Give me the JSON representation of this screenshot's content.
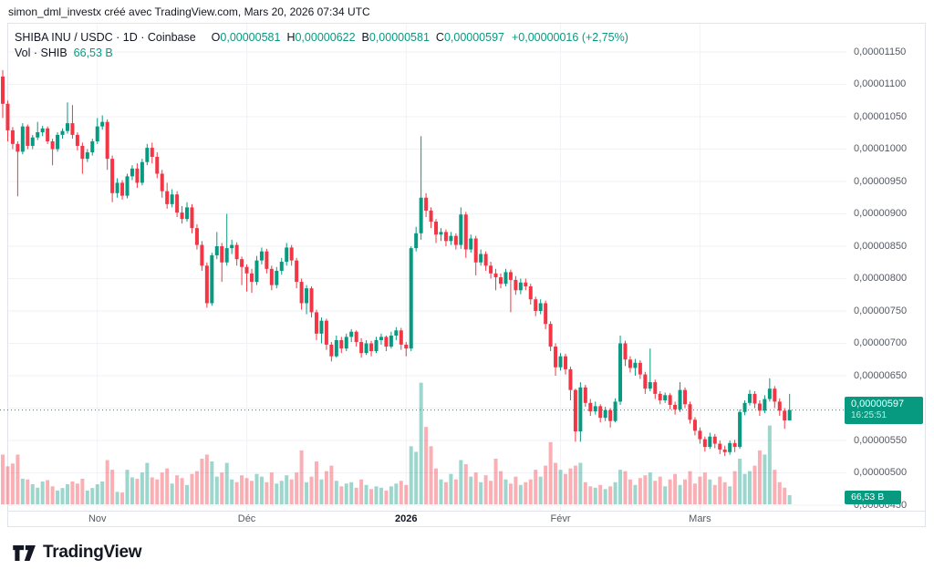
{
  "attribution": "simon_dml_investx créé avec TradingView.com, Mars 20, 2026 07:34 UTC",
  "legend": {
    "title": "SHIBA INU / USDC · 1D · Coinbase",
    "ohlc": [
      {
        "k": "O",
        "v": "0,00000581"
      },
      {
        "k": "H",
        "v": "0,00000622"
      },
      {
        "k": "B",
        "v": "0,00000581"
      },
      {
        "k": "C",
        "v": "0,00000597"
      }
    ],
    "change": "+0,00000016 (+2,75%)",
    "vol_label": "Vol · SHIB",
    "vol_value": "66,53 B"
  },
  "price_line": {
    "label": "0,00000597",
    "countdown": "16:25:51",
    "price": 597
  },
  "volume_badge": {
    "text": "66,53 B"
  },
  "logo": {
    "text": "TradingView",
    "mark_icon": "tradingview-mark"
  },
  "colors": {
    "up": "#089981",
    "down": "#f23645",
    "up_volume": "rgba(8,153,129,0.40)",
    "down_volume": "rgba(242,54,69,0.40)",
    "grid": "#f0f2f6",
    "frame": "#e0e3eb",
    "axis_text": "#555962",
    "text": "#131722",
    "badge": "#089981"
  },
  "chart_data": {
    "type": "candlestick",
    "title": "SHIBA INU / USDC · 1D · Coinbase",
    "symbol": "SHIBA INU / USDC",
    "interval": "1D",
    "exchange": "Coinbase",
    "unit": "prices in 1e-8 USDC (e.g. 597 = 0,00000597)",
    "ylim": [
      450,
      1191
    ],
    "grid_step": 50,
    "legend_position": "top-left",
    "last_candle": {
      "open": 581,
      "high": 622,
      "low": 581,
      "close": 597,
      "change": "+2,75%"
    },
    "current_price": 597,
    "volume_unit": "billions SHIB",
    "last_volume_billions": 66.53,
    "price_axis_labels": [
      {
        "text": "0,00001150",
        "price": 1150
      },
      {
        "text": "0,00001100",
        "price": 1100
      },
      {
        "text": "0,00001050",
        "price": 1050
      },
      {
        "text": "0,00001000",
        "price": 1000
      },
      {
        "text": "0,00000950",
        "price": 950
      },
      {
        "text": "0,00000900",
        "price": 900
      },
      {
        "text": "0,00000850",
        "price": 850
      },
      {
        "text": "0,00000800",
        "price": 800
      },
      {
        "text": "0,00000750",
        "price": 750
      },
      {
        "text": "0,00000700",
        "price": 700
      },
      {
        "text": "0,00000650",
        "price": 650
      },
      {
        "text": "0,00000550",
        "price": 550
      },
      {
        "text": "0,00000500",
        "price": 500
      },
      {
        "text": "0,00000450",
        "price": 450
      }
    ],
    "time_axis_labels": [
      {
        "label": "Nov",
        "index": 19,
        "bold": false
      },
      {
        "label": "Déc",
        "index": 49,
        "bold": false
      },
      {
        "label": "2026",
        "index": 81,
        "bold": true
      },
      {
        "label": "Févr",
        "index": 112,
        "bold": false
      },
      {
        "label": "Mars",
        "index": 140,
        "bold": false
      }
    ],
    "candles_ohlc": [
      [
        1112,
        1122,
        1048,
        1070
      ],
      [
        1070,
        1075,
        1012,
        1029
      ],
      [
        1029,
        1034,
        1000,
        1008
      ],
      [
        1008,
        1012,
        927,
        996
      ],
      [
        996,
        1040,
        992,
        1035
      ],
      [
        1035,
        1038,
        1000,
        1005
      ],
      [
        1005,
        1022,
        1000,
        1018
      ],
      [
        1018,
        1042,
        1014,
        1026
      ],
      [
        1026,
        1036,
        1020,
        1032
      ],
      [
        1032,
        1035,
        1008,
        1012
      ],
      [
        1012,
        1016,
        975,
        1000
      ],
      [
        1000,
        1026,
        996,
        1022
      ],
      [
        1022,
        1032,
        1016,
        1028
      ],
      [
        1028,
        1072,
        1024,
        1040
      ],
      [
        1040,
        1068,
        1016,
        1022
      ],
      [
        1022,
        1026,
        998,
        1005
      ],
      [
        1005,
        1010,
        962,
        985
      ],
      [
        985,
        1000,
        980,
        995
      ],
      [
        995,
        1016,
        990,
        1012
      ],
      [
        1012,
        1048,
        1008,
        1035
      ],
      [
        1035,
        1052,
        1030,
        1042
      ],
      [
        1042,
        1046,
        968,
        985
      ],
      [
        985,
        990,
        918,
        932
      ],
      [
        932,
        955,
        925,
        948
      ],
      [
        948,
        952,
        922,
        928
      ],
      [
        928,
        962,
        924,
        958
      ],
      [
        958,
        975,
        952,
        970
      ],
      [
        970,
        978,
        940,
        948
      ],
      [
        948,
        985,
        944,
        980
      ],
      [
        980,
        1008,
        975,
        1002
      ],
      [
        1002,
        1010,
        978,
        988
      ],
      [
        988,
        995,
        955,
        962
      ],
      [
        962,
        968,
        925,
        935
      ],
      [
        935,
        948,
        908,
        915
      ],
      [
        915,
        938,
        910,
        930
      ],
      [
        930,
        935,
        895,
        902
      ],
      [
        902,
        912,
        885,
        892
      ],
      [
        892,
        918,
        888,
        910
      ],
      [
        910,
        915,
        870,
        878
      ],
      [
        878,
        884,
        845,
        852
      ],
      [
        852,
        858,
        812,
        820
      ],
      [
        820,
        825,
        755,
        762
      ],
      [
        762,
        840,
        758,
        836
      ],
      [
        836,
        872,
        830,
        850
      ],
      [
        850,
        855,
        795,
        825
      ],
      [
        825,
        900,
        820,
        847
      ],
      [
        847,
        860,
        838,
        852
      ],
      [
        852,
        856,
        820,
        830
      ],
      [
        830,
        834,
        790,
        818
      ],
      [
        818,
        822,
        780,
        808
      ],
      [
        808,
        815,
        778,
        795
      ],
      [
        795,
        835,
        790,
        828
      ],
      [
        828,
        848,
        822,
        842
      ],
      [
        842,
        846,
        808,
        815
      ],
      [
        815,
        820,
        782,
        790
      ],
      [
        790,
        818,
        785,
        812
      ],
      [
        812,
        832,
        806,
        826
      ],
      [
        826,
        855,
        820,
        848
      ],
      [
        848,
        852,
        820,
        828
      ],
      [
        828,
        832,
        785,
        795
      ],
      [
        795,
        800,
        752,
        762
      ],
      [
        762,
        790,
        745,
        785
      ],
      [
        785,
        788,
        740,
        748
      ],
      [
        748,
        752,
        705,
        715
      ],
      [
        715,
        740,
        700,
        735
      ],
      [
        735,
        738,
        690,
        698
      ],
      [
        698,
        702,
        672,
        680
      ],
      [
        680,
        712,
        678,
        705
      ],
      [
        705,
        710,
        685,
        692
      ],
      [
        692,
        715,
        688,
        710
      ],
      [
        710,
        722,
        702,
        718
      ],
      [
        718,
        720,
        695,
        702
      ],
      [
        702,
        708,
        678,
        685
      ],
      [
        685,
        705,
        682,
        700
      ],
      [
        700,
        704,
        680,
        688
      ],
      [
        688,
        710,
        685,
        705
      ],
      [
        705,
        715,
        698,
        710
      ],
      [
        710,
        712,
        688,
        695
      ],
      [
        695,
        718,
        692,
        712
      ],
      [
        712,
        725,
        705,
        720
      ],
      [
        720,
        724,
        690,
        698
      ],
      [
        698,
        702,
        680,
        692
      ],
      [
        692,
        850,
        688,
        847
      ],
      [
        847,
        880,
        842,
        870
      ],
      [
        870,
        1020,
        860,
        925
      ],
      [
        925,
        932,
        895,
        905
      ],
      [
        905,
        910,
        878,
        888
      ],
      [
        888,
        892,
        855,
        868
      ],
      [
        868,
        878,
        858,
        872
      ],
      [
        872,
        876,
        850,
        858
      ],
      [
        858,
        872,
        852,
        866
      ],
      [
        866,
        870,
        845,
        852
      ],
      [
        852,
        910,
        846,
        899
      ],
      [
        899,
        903,
        832,
        845
      ],
      [
        845,
        868,
        840,
        862
      ],
      [
        862,
        866,
        805,
        825
      ],
      [
        825,
        845,
        820,
        838
      ],
      [
        838,
        842,
        812,
        820
      ],
      [
        820,
        826,
        800,
        808
      ],
      [
        808,
        815,
        782,
        802
      ],
      [
        802,
        808,
        785,
        792
      ],
      [
        792,
        815,
        788,
        810
      ],
      [
        810,
        814,
        748,
        798
      ],
      [
        798,
        804,
        775,
        782
      ],
      [
        782,
        800,
        776,
        794
      ],
      [
        794,
        800,
        782,
        788
      ],
      [
        788,
        792,
        760,
        768
      ],
      [
        768,
        772,
        742,
        750
      ],
      [
        750,
        768,
        745,
        762
      ],
      [
        762,
        766,
        722,
        730
      ],
      [
        730,
        734,
        688,
        695
      ],
      [
        695,
        700,
        650,
        663
      ],
      [
        663,
        685,
        658,
        680
      ],
      [
        680,
        684,
        652,
        660
      ],
      [
        660,
        664,
        612,
        628
      ],
      [
        628,
        630,
        548,
        564
      ],
      [
        564,
        640,
        548,
        632
      ],
      [
        632,
        636,
        602,
        608
      ],
      [
        608,
        614,
        588,
        595
      ],
      [
        595,
        610,
        590,
        603
      ],
      [
        603,
        606,
        578,
        585
      ],
      [
        585,
        602,
        580,
        597
      ],
      [
        597,
        600,
        570,
        580
      ],
      [
        580,
        615,
        578,
        610
      ],
      [
        610,
        712,
        605,
        700
      ],
      [
        700,
        704,
        665,
        675
      ],
      [
        675,
        680,
        655,
        662
      ],
      [
        662,
        676,
        650,
        670
      ],
      [
        670,
        674,
        645,
        652
      ],
      [
        652,
        656,
        622,
        630
      ],
      [
        630,
        692,
        626,
        640
      ],
      [
        640,
        644,
        614,
        622
      ],
      [
        622,
        626,
        606,
        612
      ],
      [
        612,
        624,
        608,
        620
      ],
      [
        620,
        623,
        598,
        605
      ],
      [
        605,
        610,
        590,
        598
      ],
      [
        598,
        640,
        594,
        628
      ],
      [
        628,
        632,
        600,
        606
      ],
      [
        606,
        610,
        576,
        582
      ],
      [
        582,
        586,
        558,
        565
      ],
      [
        565,
        570,
        545,
        552
      ],
      [
        552,
        556,
        533,
        540
      ],
      [
        540,
        562,
        537,
        556
      ],
      [
        556,
        560,
        538,
        545
      ],
      [
        545,
        550,
        529,
        536
      ],
      [
        536,
        542,
        526,
        532
      ],
      [
        532,
        550,
        528,
        546
      ],
      [
        546,
        551,
        532,
        540
      ],
      [
        540,
        598,
        537,
        594
      ],
      [
        594,
        612,
        589,
        608
      ],
      [
        608,
        628,
        604,
        622
      ],
      [
        622,
        626,
        600,
        607
      ],
      [
        607,
        612,
        588,
        596
      ],
      [
        596,
        620,
        592,
        614
      ],
      [
        614,
        646,
        610,
        630
      ],
      [
        630,
        634,
        600,
        610
      ],
      [
        610,
        615,
        588,
        596
      ],
      [
        596,
        600,
        568,
        581
      ],
      [
        581,
        622,
        581,
        597
      ]
    ],
    "volumes_billions": [
      360,
      275,
      295,
      360,
      185,
      180,
      145,
      120,
      165,
      175,
      130,
      100,
      118,
      145,
      165,
      150,
      185,
      100,
      118,
      145,
      165,
      320,
      250,
      90,
      85,
      250,
      195,
      185,
      230,
      300,
      195,
      180,
      230,
      260,
      150,
      210,
      190,
      140,
      220,
      240,
      330,
      360,
      310,
      200,
      230,
      300,
      180,
      160,
      210,
      190,
      170,
      220,
      200,
      160,
      230,
      150,
      170,
      210,
      180,
      230,
      390,
      160,
      200,
      310,
      180,
      240,
      280,
      170,
      130,
      150,
      160,
      120,
      180,
      140,
      110,
      130,
      120,
      100,
      130,
      150,
      170,
      140,
      420,
      380,
      880,
      560,
      420,
      260,
      180,
      160,
      220,
      180,
      320,
      290,
      200,
      230,
      160,
      210,
      170,
      330,
      240,
      180,
      150,
      200,
      140,
      160,
      180,
      250,
      200,
      280,
      450,
      300,
      250,
      220,
      260,
      280,
      300,
      160,
      130,
      120,
      140,
      110,
      130,
      160,
      250,
      240,
      180,
      140,
      190,
      210,
      230,
      170,
      200,
      130,
      180,
      220,
      140,
      180,
      240,
      150,
      200,
      230,
      180,
      140,
      200,
      160,
      130,
      240,
      330,
      220,
      240,
      280,
      390,
      360,
      570,
      250,
      160,
      120,
      66.53
    ]
  }
}
